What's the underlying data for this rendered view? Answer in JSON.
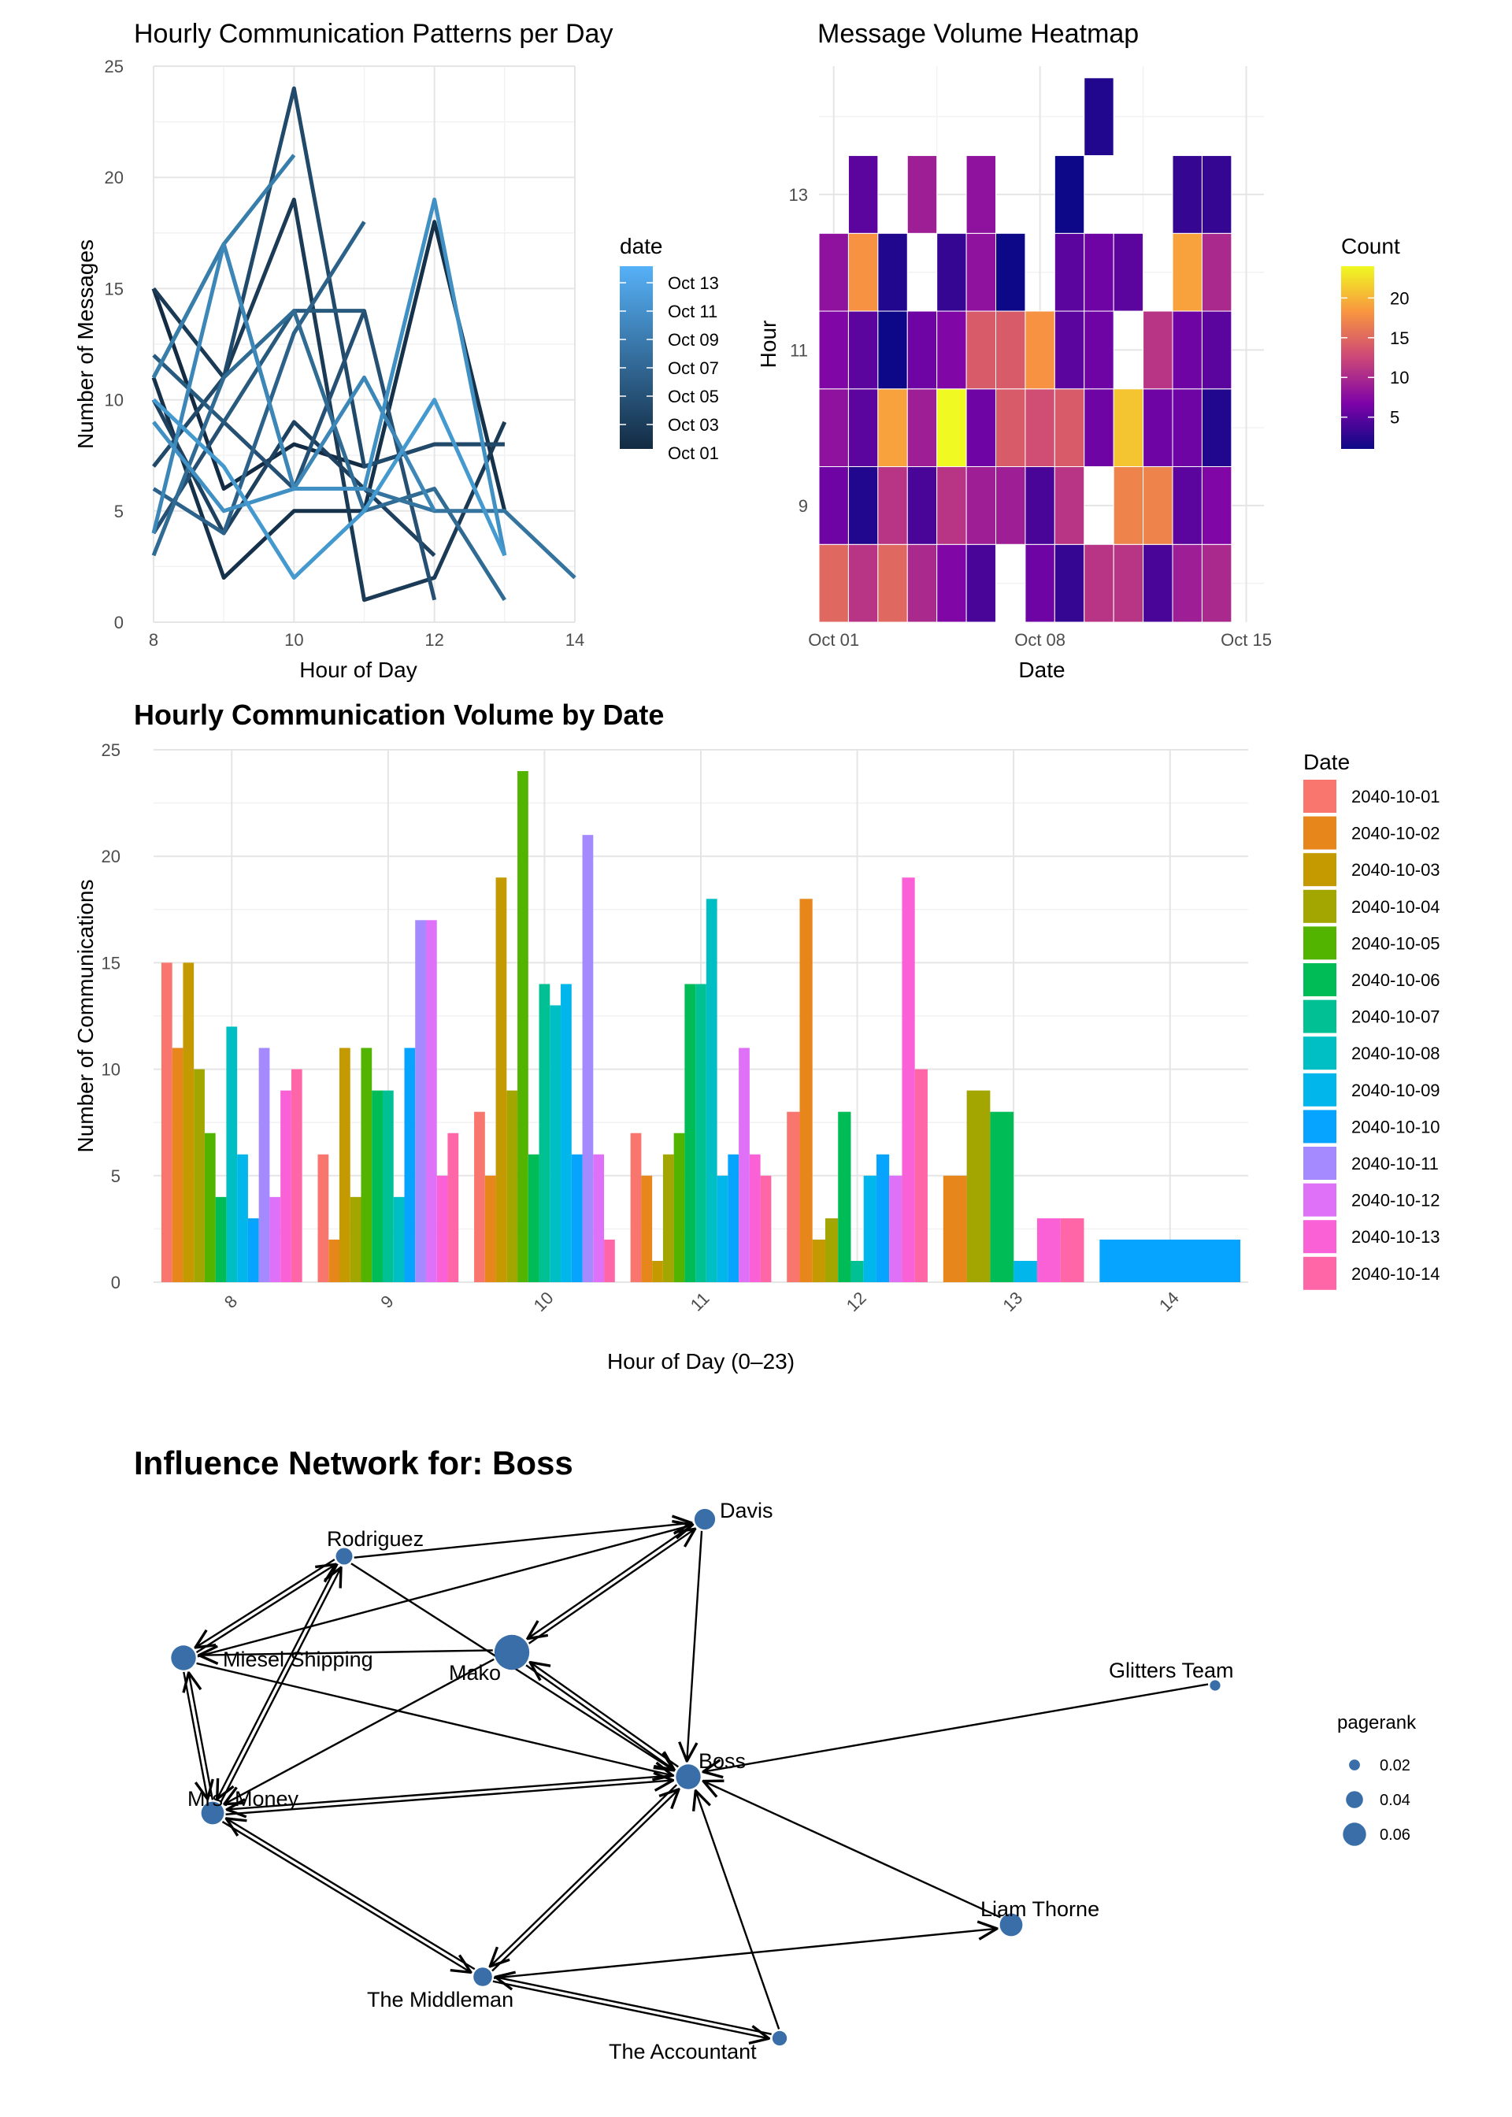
{
  "line_chart": {
    "title": "Hourly Communication Patterns per Day",
    "xlabel": "Hour of Day",
    "ylabel": "Number of Messages",
    "legend_title": "date",
    "legend_labels": [
      "Oct 13",
      "Oct 11",
      "Oct 09",
      "Oct 07",
      "Oct 05",
      "Oct 03",
      "Oct 01"
    ]
  },
  "heatmap": {
    "title": "Message Volume Heatmap",
    "xlabel": "Date",
    "ylabel": "Hour",
    "legend_title": "Count",
    "x_tick_labels": [
      "Oct 01",
      "Oct 08",
      "Oct 15"
    ],
    "y_tick_labels": [
      "9",
      "11",
      "13"
    ],
    "legend_tick_labels": [
      "20",
      "15",
      "10",
      "5"
    ]
  },
  "bar_chart": {
    "title": "Hourly Communication Volume by Date",
    "xlabel": "Hour of Day (0–23)",
    "ylabel": "Number of Communications",
    "legend_title": "Date"
  },
  "network": {
    "title": "Influence Network for: Boss",
    "legend_title": "pagerank",
    "legend_labels": [
      "0.02",
      "0.04",
      "0.06"
    ]
  },
  "chart_data": [
    {
      "type": "line",
      "id": "line",
      "title": "Hourly Communication Patterns per Day",
      "xlabel": "Hour of Day",
      "ylabel": "Number of Messages",
      "xlim": [
        8,
        14
      ],
      "ylim": [
        0,
        25
      ],
      "x_ticks": [
        8,
        10,
        12,
        14
      ],
      "y_ticks": [
        0,
        5,
        10,
        15,
        20,
        25
      ],
      "series": [
        {
          "name": "2040-10-01",
          "x": [
            8,
            9,
            10,
            11,
            12,
            13
          ],
          "y": [
            15,
            6,
            8,
            7,
            8,
            8
          ],
          "color": "#132B43"
        },
        {
          "name": "2040-10-02",
          "x": [
            8,
            9,
            10,
            11,
            12,
            13
          ],
          "y": [
            11,
            2,
            5,
            5,
            18,
            5
          ],
          "color": "#16324b"
        },
        {
          "name": "2040-10-03",
          "x": [
            8,
            9,
            10,
            11,
            12,
            13
          ],
          "y": [
            15,
            11,
            19,
            1,
            2,
            9
          ],
          "color": "#1a3a55"
        },
        {
          "name": "2040-10-04",
          "x": [
            8,
            9,
            10,
            11,
            12
          ],
          "y": [
            10,
            4,
            9,
            6,
            3
          ],
          "color": "#1d415f"
        },
        {
          "name": "2040-10-05",
          "x": [
            8,
            9,
            10,
            11,
            12,
            13
          ],
          "y": [
            7,
            11,
            24,
            7,
            8,
            8
          ],
          "color": "#214969"
        },
        {
          "name": "2040-10-06",
          "x": [
            8,
            9,
            10,
            11,
            12
          ],
          "y": [
            4,
            9,
            6,
            14,
            1
          ],
          "color": "#255073"
        },
        {
          "name": "2040-10-07",
          "x": [
            8,
            9,
            10,
            11
          ],
          "y": [
            12,
            9,
            14,
            14
          ],
          "color": "#285a7e"
        },
        {
          "name": "2040-10-08",
          "x": [
            8,
            9,
            10,
            11
          ],
          "y": [
            6,
            4,
            13,
            18
          ],
          "color": "#2c6289"
        },
        {
          "name": "2040-10-09",
          "x": [
            8,
            9,
            10,
            11,
            12,
            13
          ],
          "y": [
            3,
            11,
            14,
            5,
            6,
            1
          ],
          "color": "#306b94"
        },
        {
          "name": "2040-10-10",
          "x": [
            8,
            9,
            10,
            11,
            12,
            13,
            14
          ],
          "y": [
            11,
            17,
            6,
            6,
            5,
            5,
            2
          ],
          "color": "#34749f"
        },
        {
          "name": "2040-10-11",
          "x": [
            8,
            9,
            10
          ],
          "y": [
            11,
            17,
            21
          ],
          "color": "#387eab"
        },
        {
          "name": "2040-10-12",
          "x": [
            8,
            9,
            10,
            11,
            12
          ],
          "y": [
            4,
            17,
            6,
            11,
            5
          ],
          "color": "#3c87b7"
        },
        {
          "name": "2040-10-13",
          "x": [
            8,
            9,
            10,
            11,
            12,
            13
          ],
          "y": [
            9,
            5,
            6,
            6,
            19,
            3
          ],
          "color": "#4090c3"
        },
        {
          "name": "2040-10-14",
          "x": [
            8,
            9,
            10,
            11,
            12,
            13
          ],
          "y": [
            10,
            7,
            2,
            5,
            10,
            3
          ],
          "color": "#4499cf"
        }
      ]
    },
    {
      "type": "heatmap",
      "id": "heatmap",
      "title": "Message Volume Heatmap",
      "xlabel": "Date",
      "ylabel": "Hour",
      "x_ticks": [
        "2040-10-01",
        "2040-10-08",
        "2040-10-15"
      ],
      "y_ticks": [
        9,
        11,
        13
      ],
      "dates": [
        "2040-10-01",
        "2040-10-02",
        "2040-10-03",
        "2040-10-04",
        "2040-10-05",
        "2040-10-06",
        "2040-10-07",
        "2040-10-08",
        "2040-10-09",
        "2040-10-10",
        "2040-10-11",
        "2040-10-12",
        "2040-10-13",
        "2040-10-14"
      ],
      "hours": [
        8,
        9,
        10,
        11,
        12,
        13,
        14
      ],
      "values": [
        [
          15,
          6,
          8,
          7,
          8,
          null,
          null
        ],
        [
          11,
          2,
          5,
          5,
          18,
          5,
          null
        ],
        [
          15,
          11,
          19,
          1,
          2,
          null,
          null
        ],
        [
          10,
          4,
          9,
          6,
          null,
          9,
          null
        ],
        [
          7,
          11,
          24,
          7,
          3,
          null,
          null
        ],
        [
          4,
          9,
          6,
          14,
          8,
          8,
          null
        ],
        [
          null,
          9,
          14,
          14,
          1,
          null,
          null
        ],
        [
          6,
          4,
          13,
          18,
          null,
          null,
          null
        ],
        [
          3,
          11,
          14,
          5,
          5,
          1,
          null
        ],
        [
          11,
          null,
          6,
          6,
          6,
          null,
          2
        ],
        [
          11,
          17,
          21,
          null,
          5,
          null,
          null
        ],
        [
          4,
          17,
          6,
          11,
          null,
          null,
          null
        ],
        [
          9,
          5,
          6,
          6,
          19,
          3,
          null
        ],
        [
          10,
          7,
          2,
          5,
          10,
          3,
          null
        ]
      ],
      "color_scale": "plasma",
      "color_range": [
        1,
        24
      ],
      "legend_ticks": [
        5,
        10,
        15,
        20
      ]
    },
    {
      "type": "bar",
      "id": "bar",
      "title": "Hourly Communication Volume by Date",
      "xlabel": "Hour of Day (0–23)",
      "ylabel": "Number of Communications",
      "categories": [
        "8",
        "9",
        "10",
        "11",
        "12",
        "13",
        "14"
      ],
      "ylim": [
        0,
        25
      ],
      "y_ticks": [
        0,
        5,
        10,
        15,
        20,
        25
      ],
      "series": [
        {
          "name": "2040-10-01",
          "color": "#F8766D",
          "values": [
            15,
            6,
            8,
            7,
            8,
            null,
            null
          ]
        },
        {
          "name": "2040-10-02",
          "color": "#E7861B",
          "values": [
            11,
            2,
            5,
            5,
            18,
            5,
            null
          ]
        },
        {
          "name": "2040-10-03",
          "color": "#C49A00",
          "values": [
            15,
            11,
            19,
            1,
            2,
            null,
            null
          ]
        },
        {
          "name": "2040-10-04",
          "color": "#A3A500",
          "values": [
            10,
            4,
            9,
            6,
            3,
            9,
            null
          ]
        },
        {
          "name": "2040-10-05",
          "color": "#53B400",
          "values": [
            7,
            11,
            24,
            7,
            null,
            null,
            null
          ]
        },
        {
          "name": "2040-10-06",
          "color": "#00BC56",
          "values": [
            4,
            9,
            6,
            14,
            8,
            8,
            null
          ]
        },
        {
          "name": "2040-10-07",
          "color": "#00C094",
          "values": [
            null,
            9,
            14,
            14,
            1,
            null,
            null
          ]
        },
        {
          "name": "2040-10-08",
          "color": "#00BFC4",
          "values": [
            12,
            4,
            13,
            18,
            null,
            null,
            null
          ]
        },
        {
          "name": "2040-10-09",
          "color": "#00B6EB",
          "values": [
            6,
            null,
            14,
            5,
            5,
            1,
            null
          ]
        },
        {
          "name": "2040-10-10",
          "color": "#06A4FF",
          "values": [
            3,
            11,
            6,
            6,
            6,
            null,
            2
          ]
        },
        {
          "name": "2040-10-11",
          "color": "#A58AFF",
          "values": [
            11,
            17,
            21,
            null,
            null,
            null,
            null
          ]
        },
        {
          "name": "2040-10-12",
          "color": "#DF70F8",
          "values": [
            4,
            17,
            6,
            11,
            5,
            null,
            null
          ]
        },
        {
          "name": "2040-10-13",
          "color": "#FB61D7",
          "values": [
            9,
            5,
            null,
            6,
            19,
            3,
            null
          ]
        },
        {
          "name": "2040-10-14",
          "color": "#FF66A8",
          "values": [
            10,
            7,
            2,
            5,
            10,
            3,
            null
          ]
        }
      ]
    },
    {
      "type": "network",
      "id": "network",
      "title": "Influence Network for: Boss",
      "node_color": "#3a6ea8",
      "nodes": [
        {
          "id": "Davis",
          "label": "Davis",
          "pagerank": 0.035
        },
        {
          "id": "Rodriguez",
          "label": "Rodriguez",
          "pagerank": 0.025
        },
        {
          "id": "Miesel Shipping",
          "label": "Miesel Shipping",
          "pagerank": 0.045
        },
        {
          "id": "Mako",
          "label": "Mako",
          "pagerank": 0.07
        },
        {
          "id": "Glitters Team",
          "label": "Glitters Team",
          "pagerank": 0.01
        },
        {
          "id": "Boss",
          "label": "Boss",
          "pagerank": 0.045
        },
        {
          "id": "Mrs. Money",
          "label": "Mrs. Money",
          "pagerank": 0.04
        },
        {
          "id": "Liam Thorne",
          "label": "Liam Thorne",
          "pagerank": 0.04
        },
        {
          "id": "The Middleman",
          "label": "The Middleman",
          "pagerank": 0.03
        },
        {
          "id": "The Accountant",
          "label": "The Accountant",
          "pagerank": 0.02
        }
      ],
      "edges": [
        [
          "Rodriguez",
          "Davis"
        ],
        [
          "Miesel Shipping",
          "Davis"
        ],
        [
          "Mako",
          "Davis"
        ],
        [
          "Davis",
          "Mako"
        ],
        [
          "Davis",
          "Boss"
        ],
        [
          "Rodriguez",
          "Miesel Shipping"
        ],
        [
          "Rodriguez",
          "Boss"
        ],
        [
          "Rodriguez",
          "Mrs. Money"
        ],
        [
          "Mako",
          "Miesel Shipping"
        ],
        [
          "Miesel Shipping",
          "Rodriguez"
        ],
        [
          "Miesel Shipping",
          "Boss"
        ],
        [
          "Miesel Shipping",
          "Mrs. Money"
        ],
        [
          "Mrs. Money",
          "Miesel Shipping"
        ],
        [
          "Mrs. Money",
          "Rodriguez"
        ],
        [
          "Mako",
          "Mrs. Money"
        ],
        [
          "Mako",
          "Boss"
        ],
        [
          "Boss",
          "Mako"
        ],
        [
          "Mrs. Money",
          "Boss"
        ],
        [
          "Boss",
          "Mrs. Money"
        ],
        [
          "Glitters Team",
          "Boss"
        ],
        [
          "Liam Thorne",
          "Boss"
        ],
        [
          "Boss",
          "The Middleman"
        ],
        [
          "The Middleman",
          "Boss"
        ],
        [
          "Mrs. Money",
          "The Middleman"
        ],
        [
          "The Middleman",
          "Mrs. Money"
        ],
        [
          "The Middleman",
          "Liam Thorne"
        ],
        [
          "The Accountant",
          "The Middleman"
        ],
        [
          "The Middleman",
          "The Accountant"
        ],
        [
          "The Accountant",
          "Boss"
        ]
      ],
      "legend_values": [
        0.02,
        0.04,
        0.06
      ]
    }
  ]
}
